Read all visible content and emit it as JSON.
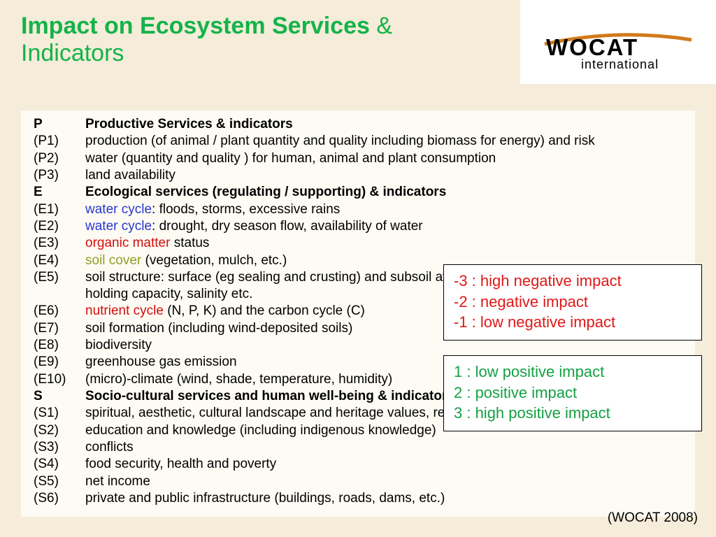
{
  "title": {
    "line1_main": "Impact on Ecosystem Services",
    "line1_amp": " &",
    "line2": "Indicators"
  },
  "logo": {
    "name": "WOCAT",
    "sub": "international"
  },
  "sections": {
    "P": {
      "code": "P",
      "header": "Productive Services  & indicators",
      "items": [
        {
          "code": "(P1)",
          "text": "production (of animal / plant quantity and quality including biomass for energy) and risk"
        },
        {
          "code": "(P2)",
          "text": "water (quantity and quality ) for human, animal and plant consumption"
        },
        {
          "code": "(P3)",
          "text": "land availability"
        }
      ]
    },
    "E": {
      "code": "E",
      "header": "Ecological services (regulating / supporting) & indicators",
      "items": [
        {
          "code": "(E1)",
          "prefix": "water cycle",
          "prefix_color": "blue",
          "text": ": floods, storms, excessive rains"
        },
        {
          "code": "(E2)",
          "prefix": "water cycle",
          "prefix_color": "blue",
          "text": ": drought, dry season flow, availability of water"
        },
        {
          "code": "(E3)",
          "prefix": "organic matter",
          "prefix_color": "red",
          "text": " status"
        },
        {
          "code": "(E4)",
          "prefix": "soil cover",
          "prefix_color": "olive",
          "text": " (vegetation, mulch, etc.)"
        },
        {
          "code": "(E5)",
          "text": "soil structure: surface (eg sealing and crusting) and subsoil affecting infiltration, water and nutrient holding capacity, salinity etc."
        },
        {
          "code": "(E6)",
          "prefix": "nutrient cycle",
          "prefix_color": "red",
          "text": " (N, P, K) and the carbon cycle (C)"
        },
        {
          "code": "(E7)",
          "text": "soil formation (including wind-deposited soils)"
        },
        {
          "code": "(E8)",
          "text": "biodiversity"
        },
        {
          "code": "(E9)",
          "text": "greenhouse gas emission"
        },
        {
          "code": "(E10)",
          "text": "(micro)-climate (wind, shade, temperature, humidity)"
        }
      ]
    },
    "S": {
      "code": "S",
      "header": "Socio-cultural services and human well-being & indicators",
      "items": [
        {
          "code": "(S1)",
          "text": "spiritual, aesthetic, cultural landscape and heritage values, recreation and tourism"
        },
        {
          "code": "(S2)",
          "text": "education and knowledge (including indigenous knowledge)"
        },
        {
          "code": "(S3)",
          "text": "conflicts"
        },
        {
          "code": "(S4)",
          "text": "food security, health  and poverty"
        },
        {
          "code": "(S5)",
          "text": "net income"
        },
        {
          "code": "(S6)",
          "text": "private and public infrastructure (buildings, roads, dams, etc.)"
        }
      ]
    }
  },
  "legend_neg": [
    "-3 : high negative impact",
    "-2 : negative impact",
    "-1 : low negative impact"
  ],
  "legend_pos": [
    "1 : low positive impact",
    "2 : positive impact",
    "3 : high positive impact"
  ],
  "footer": "(WOCAT 2008)",
  "colors": {
    "green": "#14b34a",
    "bg": "#f5ecd9",
    "content_bg": "#fdfbf3",
    "blue": "#2937d1",
    "red": "#d10f0f",
    "olive": "#8fa023",
    "legend_red": "#e01818",
    "legend_green": "#14a043"
  }
}
